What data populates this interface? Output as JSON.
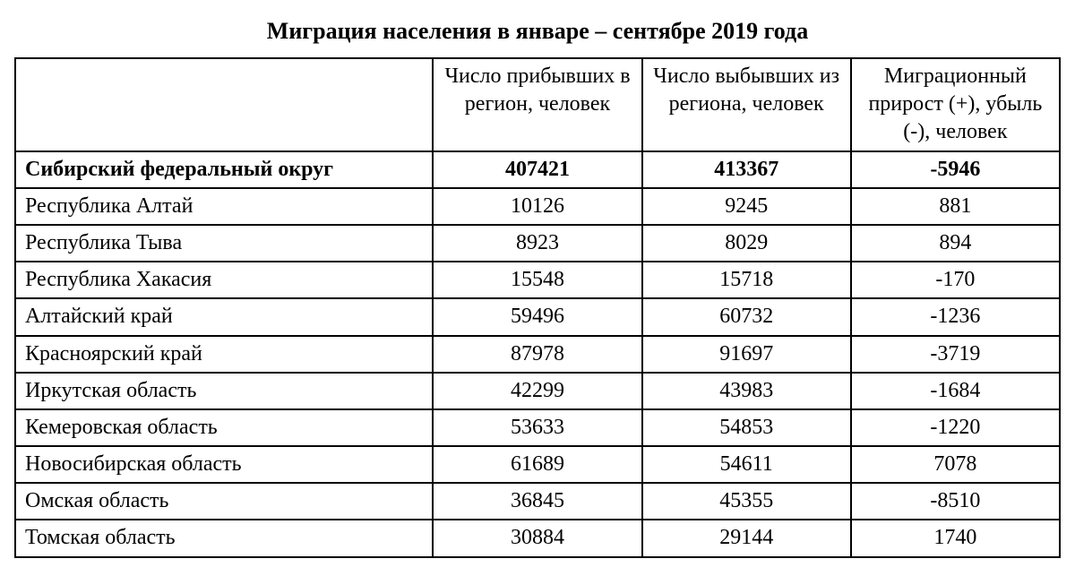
{
  "title": "Миграция населения в январе – сентябре 2019 года",
  "table": {
    "columns": [
      "",
      "Число прибывших в регион, человек",
      "Число выбывших из региона, человек",
      "Миграционный прирост (+), убыль (-), человек"
    ],
    "column_widths_pct": [
      40,
      20,
      20,
      20
    ],
    "header_align": "center",
    "region_align": "left",
    "number_align": "center",
    "border_color": "#000000",
    "background_color": "#ffffff",
    "font_family": "Times New Roman",
    "header_fontsize": 24,
    "cell_fontsize": 24,
    "title_fontsize": 26,
    "rows": [
      {
        "bold": true,
        "region": "Сибирский федеральный округ",
        "arrivals": "407421",
        "departures": "413367",
        "net": "-5946"
      },
      {
        "bold": false,
        "region": "Республика Алтай",
        "arrivals": "10126",
        "departures": "9245",
        "net": "881"
      },
      {
        "bold": false,
        "region": "Республика Тыва",
        "arrivals": "8923",
        "departures": "8029",
        "net": "894"
      },
      {
        "bold": false,
        "region": "Республика Хакасия",
        "arrivals": "15548",
        "departures": "15718",
        "net": "-170"
      },
      {
        "bold": false,
        "region": "Алтайский край",
        "arrivals": "59496",
        "departures": "60732",
        "net": "-1236"
      },
      {
        "bold": false,
        "region": "Красноярский край",
        "arrivals": "87978",
        "departures": "91697",
        "net": "-3719"
      },
      {
        "bold": false,
        "region": "Иркутская область",
        "arrivals": "42299",
        "departures": "43983",
        "net": "-1684"
      },
      {
        "bold": false,
        "region": "Кемеровская область",
        "arrivals": "53633",
        "departures": "54853",
        "net": "-1220"
      },
      {
        "bold": false,
        "region": "Новосибирская область",
        "arrivals": "61689",
        "departures": "54611",
        "net": "7078"
      },
      {
        "bold": false,
        "region": "Омская область",
        "arrivals": "36845",
        "departures": "45355",
        "net": "-8510"
      },
      {
        "bold": false,
        "region": "Томская область",
        "arrivals": "30884",
        "departures": "29144",
        "net": "1740"
      }
    ]
  }
}
